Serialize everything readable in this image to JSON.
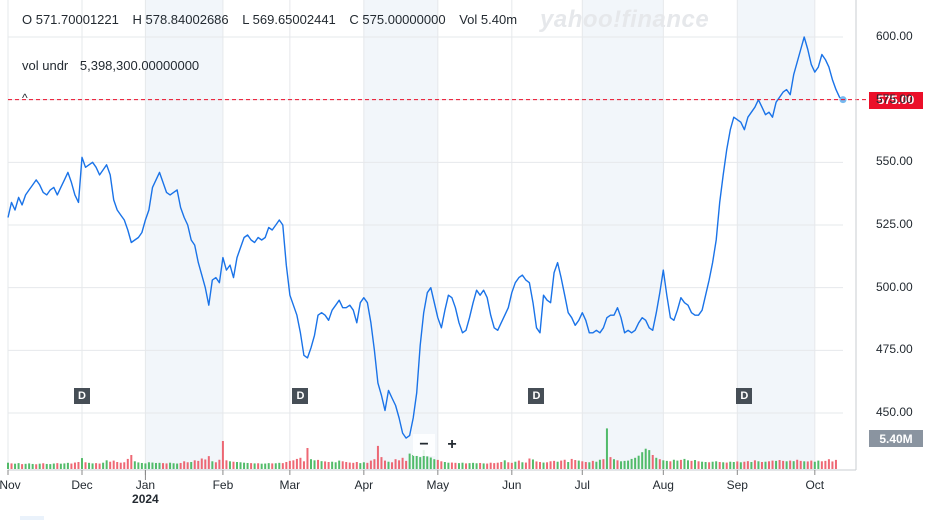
{
  "header": {
    "open": "O 571.70001221",
    "high": "H 578.84002686",
    "low": "L 569.65002441",
    "close": "C 575.00000000",
    "volume": "Vol 5.40m",
    "vol_label": "vol undr",
    "vol_value": "5,398,300.00000000",
    "watermark": "yahoo!finance",
    "caret": "^"
  },
  "controls": {
    "zoom_out": "−",
    "zoom_in": "+"
  },
  "colors": {
    "line": "#1a73e8",
    "up": "#35b050",
    "down": "#eb4d5c",
    "last_price": "#eb0f29",
    "shade": "#f2f6fa",
    "grid": "#e6e8eb",
    "vol_tag": "#8a94a0"
  },
  "chart_data": {
    "type": "line",
    "title": "",
    "xlabel": "",
    "ylabel": "",
    "ylim": [
      430,
      615
    ],
    "yticks": [
      "600.00",
      "575.00",
      "550.00",
      "525.00",
      "500.00",
      "475.00",
      "450.00"
    ],
    "ytick_values": [
      600,
      575,
      550,
      525,
      500,
      475,
      450
    ],
    "xticks": [
      "Nov",
      "Dec",
      "Jan",
      "Feb",
      "Mar",
      "Apr",
      "May",
      "Jun",
      "Jul",
      "Aug",
      "Sep",
      "Oct"
    ],
    "xtick_index": [
      0,
      21,
      39,
      61,
      80,
      101,
      122,
      143,
      163,
      186,
      207,
      229
    ],
    "year_label": "2024",
    "year_index": 39,
    "last_price": 575.0,
    "last_price_label": "575.00",
    "last_volume_label": "5.40M",
    "dividends": {
      "label": "D",
      "index": [
        21,
        83,
        150,
        209
      ]
    },
    "shaded_months": [
      [
        39,
        61
      ],
      [
        101,
        122
      ],
      [
        163,
        186
      ],
      [
        207,
        229
      ]
    ],
    "series": [
      {
        "name": "Close",
        "values": [
          528,
          534,
          531,
          536,
          533,
          537,
          539,
          541,
          543,
          541,
          538,
          537,
          539,
          540,
          537,
          540,
          543,
          546,
          542,
          537,
          534,
          552,
          548,
          549,
          550,
          548,
          545,
          547,
          549,
          545,
          535,
          531,
          529,
          527,
          523,
          518,
          519,
          520,
          522,
          527,
          531,
          540,
          543,
          546,
          542,
          538,
          537,
          538,
          539,
          532,
          528,
          525,
          519,
          517,
          510,
          505,
          500,
          493,
          503,
          504,
          502,
          512,
          507,
          509,
          504,
          512,
          516,
          520,
          521,
          519,
          518,
          520,
          519,
          520,
          524,
          523,
          525,
          527,
          525,
          509,
          497,
          493,
          489,
          482,
          473,
          472,
          476,
          481,
          489,
          490,
          489,
          487,
          491,
          493,
          495,
          492,
          492,
          493,
          491,
          486,
          494,
          496,
          494,
          486,
          475,
          462,
          457,
          451,
          459,
          456,
          453,
          448,
          442,
          440,
          441,
          448,
          458,
          477,
          490,
          498,
          500,
          494,
          488,
          484,
          491,
          497,
          496,
          492,
          486,
          482,
          483,
          488,
          494,
          499,
          497,
          499,
          496,
          489,
          484,
          483,
          486,
          489,
          492,
          498,
          502,
          504,
          505,
          503,
          502,
          494,
          484,
          482,
          497,
          495,
          494,
          506,
          510,
          504,
          497,
          490,
          488,
          485,
          487,
          490,
          487,
          482,
          482,
          483,
          482,
          484,
          488,
          489,
          489,
          492,
          488,
          482,
          483,
          482,
          483,
          486,
          488,
          487,
          484,
          483,
          490,
          498,
          507,
          497,
          488,
          487,
          491,
          496,
          494,
          493,
          490,
          489,
          489,
          491,
          497,
          503,
          510,
          519,
          534,
          545,
          555,
          563,
          568,
          567,
          566,
          563,
          568,
          570,
          572,
          575,
          572,
          569,
          570,
          568,
          574,
          576,
          578,
          579,
          577,
          585,
          590,
          595,
          600,
          595,
          589,
          586,
          588,
          593,
          591,
          588,
          583,
          579,
          576,
          575
        ]
      }
    ],
    "volume": [
      {
        "v": 0.45,
        "u": 1
      },
      {
        "v": 0.4,
        "u": 0
      },
      {
        "v": 0.38,
        "u": 1
      },
      {
        "v": 0.42,
        "u": 1
      },
      {
        "v": 0.35,
        "u": 0
      },
      {
        "v": 0.37,
        "u": 1
      },
      {
        "v": 0.4,
        "u": 1
      },
      {
        "v": 0.36,
        "u": 1
      },
      {
        "v": 0.34,
        "u": 0
      },
      {
        "v": 0.38,
        "u": 1
      },
      {
        "v": 0.41,
        "u": 0
      },
      {
        "v": 0.36,
        "u": 1
      },
      {
        "v": 0.35,
        "u": 1
      },
      {
        "v": 0.39,
        "u": 1
      },
      {
        "v": 0.42,
        "u": 0
      },
      {
        "v": 0.38,
        "u": 1
      },
      {
        "v": 0.4,
        "u": 1
      },
      {
        "v": 0.44,
        "u": 1
      },
      {
        "v": 0.39,
        "u": 0
      },
      {
        "v": 0.46,
        "u": 0
      },
      {
        "v": 0.5,
        "u": 0
      },
      {
        "v": 0.78,
        "u": 1
      },
      {
        "v": 0.48,
        "u": 0
      },
      {
        "v": 0.44,
        "u": 1
      },
      {
        "v": 0.4,
        "u": 1
      },
      {
        "v": 0.42,
        "u": 0
      },
      {
        "v": 0.39,
        "u": 0
      },
      {
        "v": 0.45,
        "u": 1
      },
      {
        "v": 0.62,
        "u": 1
      },
      {
        "v": 0.52,
        "u": 0
      },
      {
        "v": 0.6,
        "u": 0
      },
      {
        "v": 0.5,
        "u": 0
      },
      {
        "v": 0.45,
        "u": 0
      },
      {
        "v": 0.48,
        "u": 0
      },
      {
        "v": 0.72,
        "u": 0
      },
      {
        "v": 1.0,
        "u": 0
      },
      {
        "v": 0.55,
        "u": 1
      },
      {
        "v": 0.47,
        "u": 1
      },
      {
        "v": 0.43,
        "u": 1
      },
      {
        "v": 0.4,
        "u": 1
      },
      {
        "v": 0.48,
        "u": 1
      },
      {
        "v": 0.46,
        "u": 1
      },
      {
        "v": 0.43,
        "u": 1
      },
      {
        "v": 0.44,
        "u": 1
      },
      {
        "v": 0.42,
        "u": 0
      },
      {
        "v": 0.4,
        "u": 0
      },
      {
        "v": 0.45,
        "u": 1
      },
      {
        "v": 0.41,
        "u": 1
      },
      {
        "v": 0.39,
        "u": 1
      },
      {
        "v": 0.43,
        "u": 0
      },
      {
        "v": 0.55,
        "u": 0
      },
      {
        "v": 0.48,
        "u": 0
      },
      {
        "v": 0.5,
        "u": 1
      },
      {
        "v": 0.62,
        "u": 0
      },
      {
        "v": 0.58,
        "u": 0
      },
      {
        "v": 0.75,
        "u": 0
      },
      {
        "v": 0.68,
        "u": 0
      },
      {
        "v": 0.92,
        "u": 0
      },
      {
        "v": 0.55,
        "u": 1
      },
      {
        "v": 0.48,
        "u": 0
      },
      {
        "v": 0.66,
        "u": 0
      },
      {
        "v": 2.0,
        "u": 0
      },
      {
        "v": 0.62,
        "u": 0
      },
      {
        "v": 0.55,
        "u": 1
      },
      {
        "v": 0.52,
        "u": 0
      },
      {
        "v": 0.5,
        "u": 1
      },
      {
        "v": 0.48,
        "u": 1
      },
      {
        "v": 0.45,
        "u": 1
      },
      {
        "v": 0.43,
        "u": 1
      },
      {
        "v": 0.42,
        "u": 0
      },
      {
        "v": 0.4,
        "u": 1
      },
      {
        "v": 0.41,
        "u": 0
      },
      {
        "v": 0.38,
        "u": 1
      },
      {
        "v": 0.39,
        "u": 1
      },
      {
        "v": 0.42,
        "u": 1
      },
      {
        "v": 0.4,
        "u": 0
      },
      {
        "v": 0.41,
        "u": 1
      },
      {
        "v": 0.44,
        "u": 1
      },
      {
        "v": 0.42,
        "u": 0
      },
      {
        "v": 0.5,
        "u": 0
      },
      {
        "v": 0.58,
        "u": 0
      },
      {
        "v": 0.62,
        "u": 0
      },
      {
        "v": 0.72,
        "u": 0
      },
      {
        "v": 0.8,
        "u": 0
      },
      {
        "v": 0.55,
        "u": 0
      },
      {
        "v": 1.5,
        "u": 0
      },
      {
        "v": 0.7,
        "u": 1
      },
      {
        "v": 0.62,
        "u": 1
      },
      {
        "v": 0.65,
        "u": 0
      },
      {
        "v": 0.56,
        "u": 1
      },
      {
        "v": 0.54,
        "u": 0
      },
      {
        "v": 0.5,
        "u": 0
      },
      {
        "v": 0.52,
        "u": 1
      },
      {
        "v": 0.48,
        "u": 1
      },
      {
        "v": 0.6,
        "u": 1
      },
      {
        "v": 0.55,
        "u": 0
      },
      {
        "v": 0.5,
        "u": 0
      },
      {
        "v": 0.46,
        "u": 0
      },
      {
        "v": 0.44,
        "u": 0
      },
      {
        "v": 0.5,
        "u": 0
      },
      {
        "v": 0.42,
        "u": 1
      },
      {
        "v": 0.48,
        "u": 1
      },
      {
        "v": 0.44,
        "u": 0
      },
      {
        "v": 0.6,
        "u": 0
      },
      {
        "v": 0.7,
        "u": 0
      },
      {
        "v": 1.65,
        "u": 0
      },
      {
        "v": 0.85,
        "u": 0
      },
      {
        "v": 0.6,
        "u": 0
      },
      {
        "v": 0.52,
        "u": 1
      },
      {
        "v": 0.48,
        "u": 0
      },
      {
        "v": 0.7,
        "u": 0
      },
      {
        "v": 0.62,
        "u": 0
      },
      {
        "v": 0.8,
        "u": 0
      },
      {
        "v": 0.58,
        "u": 0
      },
      {
        "v": 1.1,
        "u": 1
      },
      {
        "v": 1.0,
        "u": 1
      },
      {
        "v": 0.95,
        "u": 1
      },
      {
        "v": 0.85,
        "u": 1
      },
      {
        "v": 1.35,
        "u": 1
      },
      {
        "v": 0.9,
        "u": 1
      },
      {
        "v": 0.82,
        "u": 1
      },
      {
        "v": 0.7,
        "u": 1
      },
      {
        "v": 0.65,
        "u": 0
      },
      {
        "v": 0.55,
        "u": 0
      },
      {
        "v": 0.5,
        "u": 1
      },
      {
        "v": 0.45,
        "u": 1
      },
      {
        "v": 0.46,
        "u": 0
      },
      {
        "v": 0.44,
        "u": 0
      },
      {
        "v": 0.42,
        "u": 1
      },
      {
        "v": 0.45,
        "u": 1
      },
      {
        "v": 0.4,
        "u": 0
      },
      {
        "v": 0.42,
        "u": 1
      },
      {
        "v": 0.44,
        "u": 1
      },
      {
        "v": 0.41,
        "u": 1
      },
      {
        "v": 0.43,
        "u": 0
      },
      {
        "v": 0.4,
        "u": 1
      },
      {
        "v": 0.39,
        "u": 0
      },
      {
        "v": 0.45,
        "u": 0
      },
      {
        "v": 0.42,
        "u": 0
      },
      {
        "v": 0.45,
        "u": 0
      },
      {
        "v": 0.5,
        "u": 0
      },
      {
        "v": 0.62,
        "u": 1
      },
      {
        "v": 0.48,
        "u": 0
      },
      {
        "v": 0.44,
        "u": 0
      },
      {
        "v": 0.52,
        "u": 1
      },
      {
        "v": 0.6,
        "u": 0
      },
      {
        "v": 0.48,
        "u": 1
      },
      {
        "v": 0.46,
        "u": 0
      },
      {
        "v": 0.75,
        "u": 0
      },
      {
        "v": 0.68,
        "u": 1
      },
      {
        "v": 0.54,
        "u": 0
      },
      {
        "v": 0.5,
        "u": 0
      },
      {
        "v": 0.46,
        "u": 1
      },
      {
        "v": 0.48,
        "u": 0
      },
      {
        "v": 0.55,
        "u": 0
      },
      {
        "v": 0.58,
        "u": 0
      },
      {
        "v": 0.52,
        "u": 1
      },
      {
        "v": 0.6,
        "u": 0
      },
      {
        "v": 0.66,
        "u": 0
      },
      {
        "v": 0.5,
        "u": 1
      },
      {
        "v": 0.72,
        "u": 0
      },
      {
        "v": 0.64,
        "u": 0
      },
      {
        "v": 0.6,
        "u": 1
      },
      {
        "v": 0.55,
        "u": 0
      },
      {
        "v": 0.5,
        "u": 0
      },
      {
        "v": 0.48,
        "u": 1
      },
      {
        "v": 0.58,
        "u": 0
      },
      {
        "v": 0.52,
        "u": 1
      },
      {
        "v": 0.66,
        "u": 1
      },
      {
        "v": 0.7,
        "u": 0
      },
      {
        "v": 2.9,
        "u": 1
      },
      {
        "v": 0.85,
        "u": 0
      },
      {
        "v": 0.7,
        "u": 1
      },
      {
        "v": 0.62,
        "u": 0
      },
      {
        "v": 0.55,
        "u": 1
      },
      {
        "v": 0.58,
        "u": 1
      },
      {
        "v": 0.6,
        "u": 1
      },
      {
        "v": 0.72,
        "u": 1
      },
      {
        "v": 0.8,
        "u": 1
      },
      {
        "v": 0.95,
        "u": 1
      },
      {
        "v": 1.2,
        "u": 1
      },
      {
        "v": 1.45,
        "u": 1
      },
      {
        "v": 1.35,
        "u": 1
      },
      {
        "v": 1.0,
        "u": 0
      },
      {
        "v": 0.8,
        "u": 1
      },
      {
        "v": 0.7,
        "u": 0
      },
      {
        "v": 0.62,
        "u": 1
      },
      {
        "v": 0.58,
        "u": 1
      },
      {
        "v": 0.55,
        "u": 0
      },
      {
        "v": 0.66,
        "u": 1
      },
      {
        "v": 0.6,
        "u": 1
      },
      {
        "v": 0.65,
        "u": 0
      },
      {
        "v": 0.72,
        "u": 1
      },
      {
        "v": 0.62,
        "u": 1
      },
      {
        "v": 0.58,
        "u": 0
      },
      {
        "v": 0.64,
        "u": 1
      },
      {
        "v": 0.55,
        "u": 0
      },
      {
        "v": 0.52,
        "u": 1
      },
      {
        "v": 0.5,
        "u": 1
      },
      {
        "v": 0.48,
        "u": 0
      },
      {
        "v": 0.52,
        "u": 1
      },
      {
        "v": 0.55,
        "u": 1
      },
      {
        "v": 0.5,
        "u": 0
      },
      {
        "v": 0.48,
        "u": 1
      },
      {
        "v": 0.46,
        "u": 0
      },
      {
        "v": 0.52,
        "u": 1
      },
      {
        "v": 0.5,
        "u": 1
      },
      {
        "v": 0.54,
        "u": 0
      },
      {
        "v": 0.48,
        "u": 1
      },
      {
        "v": 0.52,
        "u": 0
      },
      {
        "v": 0.56,
        "u": 0
      },
      {
        "v": 0.5,
        "u": 1
      },
      {
        "v": 0.62,
        "u": 0
      },
      {
        "v": 0.55,
        "u": 1
      },
      {
        "v": 0.5,
        "u": 0
      },
      {
        "v": 0.52,
        "u": 1
      },
      {
        "v": 0.55,
        "u": 0
      },
      {
        "v": 0.6,
        "u": 0
      },
      {
        "v": 0.58,
        "u": 1
      },
      {
        "v": 0.64,
        "u": 0
      },
      {
        "v": 0.58,
        "u": 0
      },
      {
        "v": 0.55,
        "u": 1
      },
      {
        "v": 0.6,
        "u": 0
      },
      {
        "v": 0.56,
        "u": 1
      },
      {
        "v": 0.66,
        "u": 0
      },
      {
        "v": 0.58,
        "u": 0
      },
      {
        "v": 0.55,
        "u": 1
      },
      {
        "v": 0.54,
        "u": 0
      },
      {
        "v": 0.6,
        "u": 0
      },
      {
        "v": 0.52,
        "u": 1
      },
      {
        "v": 0.6,
        "u": 1
      },
      {
        "v": 0.55,
        "u": 0
      },
      {
        "v": 0.58,
        "u": 0
      },
      {
        "v": 0.7,
        "u": 0
      },
      {
        "v": 0.54,
        "u": 0
      },
      {
        "v": 0.65,
        "u": 0
      }
    ]
  }
}
